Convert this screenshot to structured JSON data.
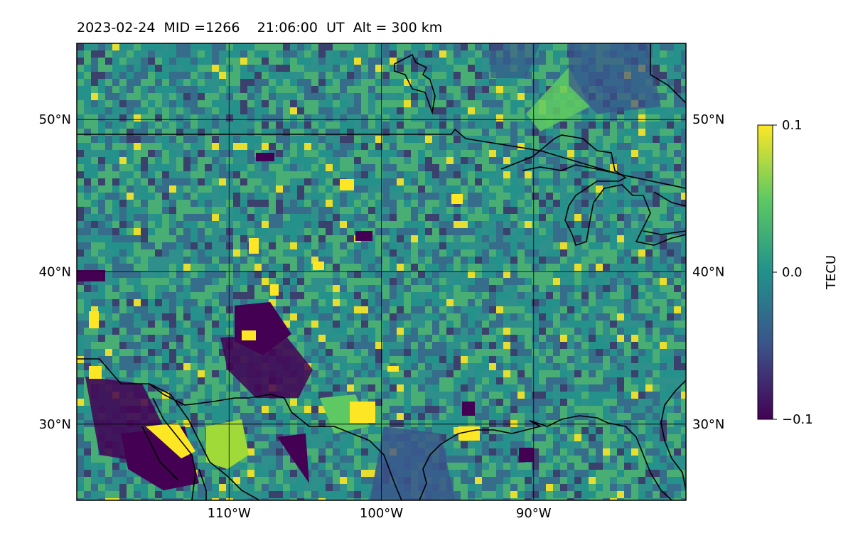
{
  "title": {
    "date": "2023-02-24",
    "mid": "MID =1266",
    "time": "21:06:00",
    "ut": "UT",
    "alt": "Alt = 300 km"
  },
  "map": {
    "lon_range": [
      -120,
      -80
    ],
    "lat_range": [
      25,
      55
    ],
    "lon_ticks": [
      {
        "value": -110,
        "label": "110°W"
      },
      {
        "value": -100,
        "label": "100°W"
      },
      {
        "value": -90,
        "label": "90°W"
      }
    ],
    "lat_ticks": [
      {
        "value": 50,
        "label": "50°N"
      },
      {
        "value": 40,
        "label": "40°N"
      },
      {
        "value": 30,
        "label": "30°N"
      }
    ],
    "gridlines": true,
    "colormap": "viridis",
    "background_color": "#2f8f8a",
    "coastline_color": "#000000"
  },
  "colorbar": {
    "label": "TECU",
    "min": -0.1,
    "max": 0.1,
    "ticks": [
      {
        "value": 0.1,
        "label": "0.1"
      },
      {
        "value": 0.0,
        "label": "0.0"
      },
      {
        "value": -0.1,
        "label": "−0.1"
      }
    ],
    "colors": [
      "#440154",
      "#3b528b",
      "#21918c",
      "#5ec962",
      "#fde725"
    ]
  }
}
